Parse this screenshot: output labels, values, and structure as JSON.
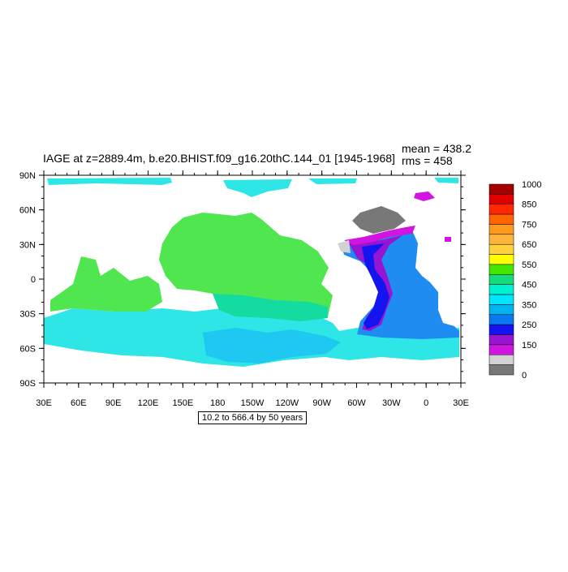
{
  "title": "IAGE at z=2889.4m, b.e20.BHIST.f09_g16.20thC.144_01 [1945-1968]",
  "mean": "mean = 438.2",
  "rms": "rms = 458",
  "subtitle": "10.2 to 566.4 by 50 years",
  "lat_ticks": [
    "90N",
    "60N",
    "30N",
    "0",
    "30S",
    "60S",
    "90S"
  ],
  "lon_ticks": [
    "30E",
    "60E",
    "90E",
    "120E",
    "150E",
    "180",
    "150W",
    "120W",
    "90W",
    "60W",
    "30W",
    "0",
    "30E"
  ],
  "colorbar": {
    "colors": [
      "#a40000",
      "#e00000",
      "#ff2800",
      "#ff6400",
      "#ff9a1e",
      "#ffb43c",
      "#ffd23c",
      "#ffff00",
      "#46e600",
      "#14dc78",
      "#00f0d2",
      "#00e6ff",
      "#00b4f0",
      "#0a78f0",
      "#1414f0",
      "#9614d2",
      "#d214e1",
      "#d2d2d2",
      "#787878"
    ],
    "labels": [
      "1000",
      "850",
      "750",
      "650",
      "550",
      "450",
      "350",
      "250",
      "150",
      "0"
    ]
  },
  "colors": {
    "age_cyan": "#2ee6e6",
    "age_cyan_dark": "#1ec8f0",
    "age_green": "#50e650",
    "age_green_light": "#8cf046",
    "age_teal": "#14dca0",
    "age_blue": "#1e8cf0",
    "age_deep_blue": "#1414f0",
    "age_purple": "#9614d2",
    "age_magenta": "#d214e1",
    "age_gray": "#787878",
    "age_light_gray": "#d2d2d2"
  }
}
